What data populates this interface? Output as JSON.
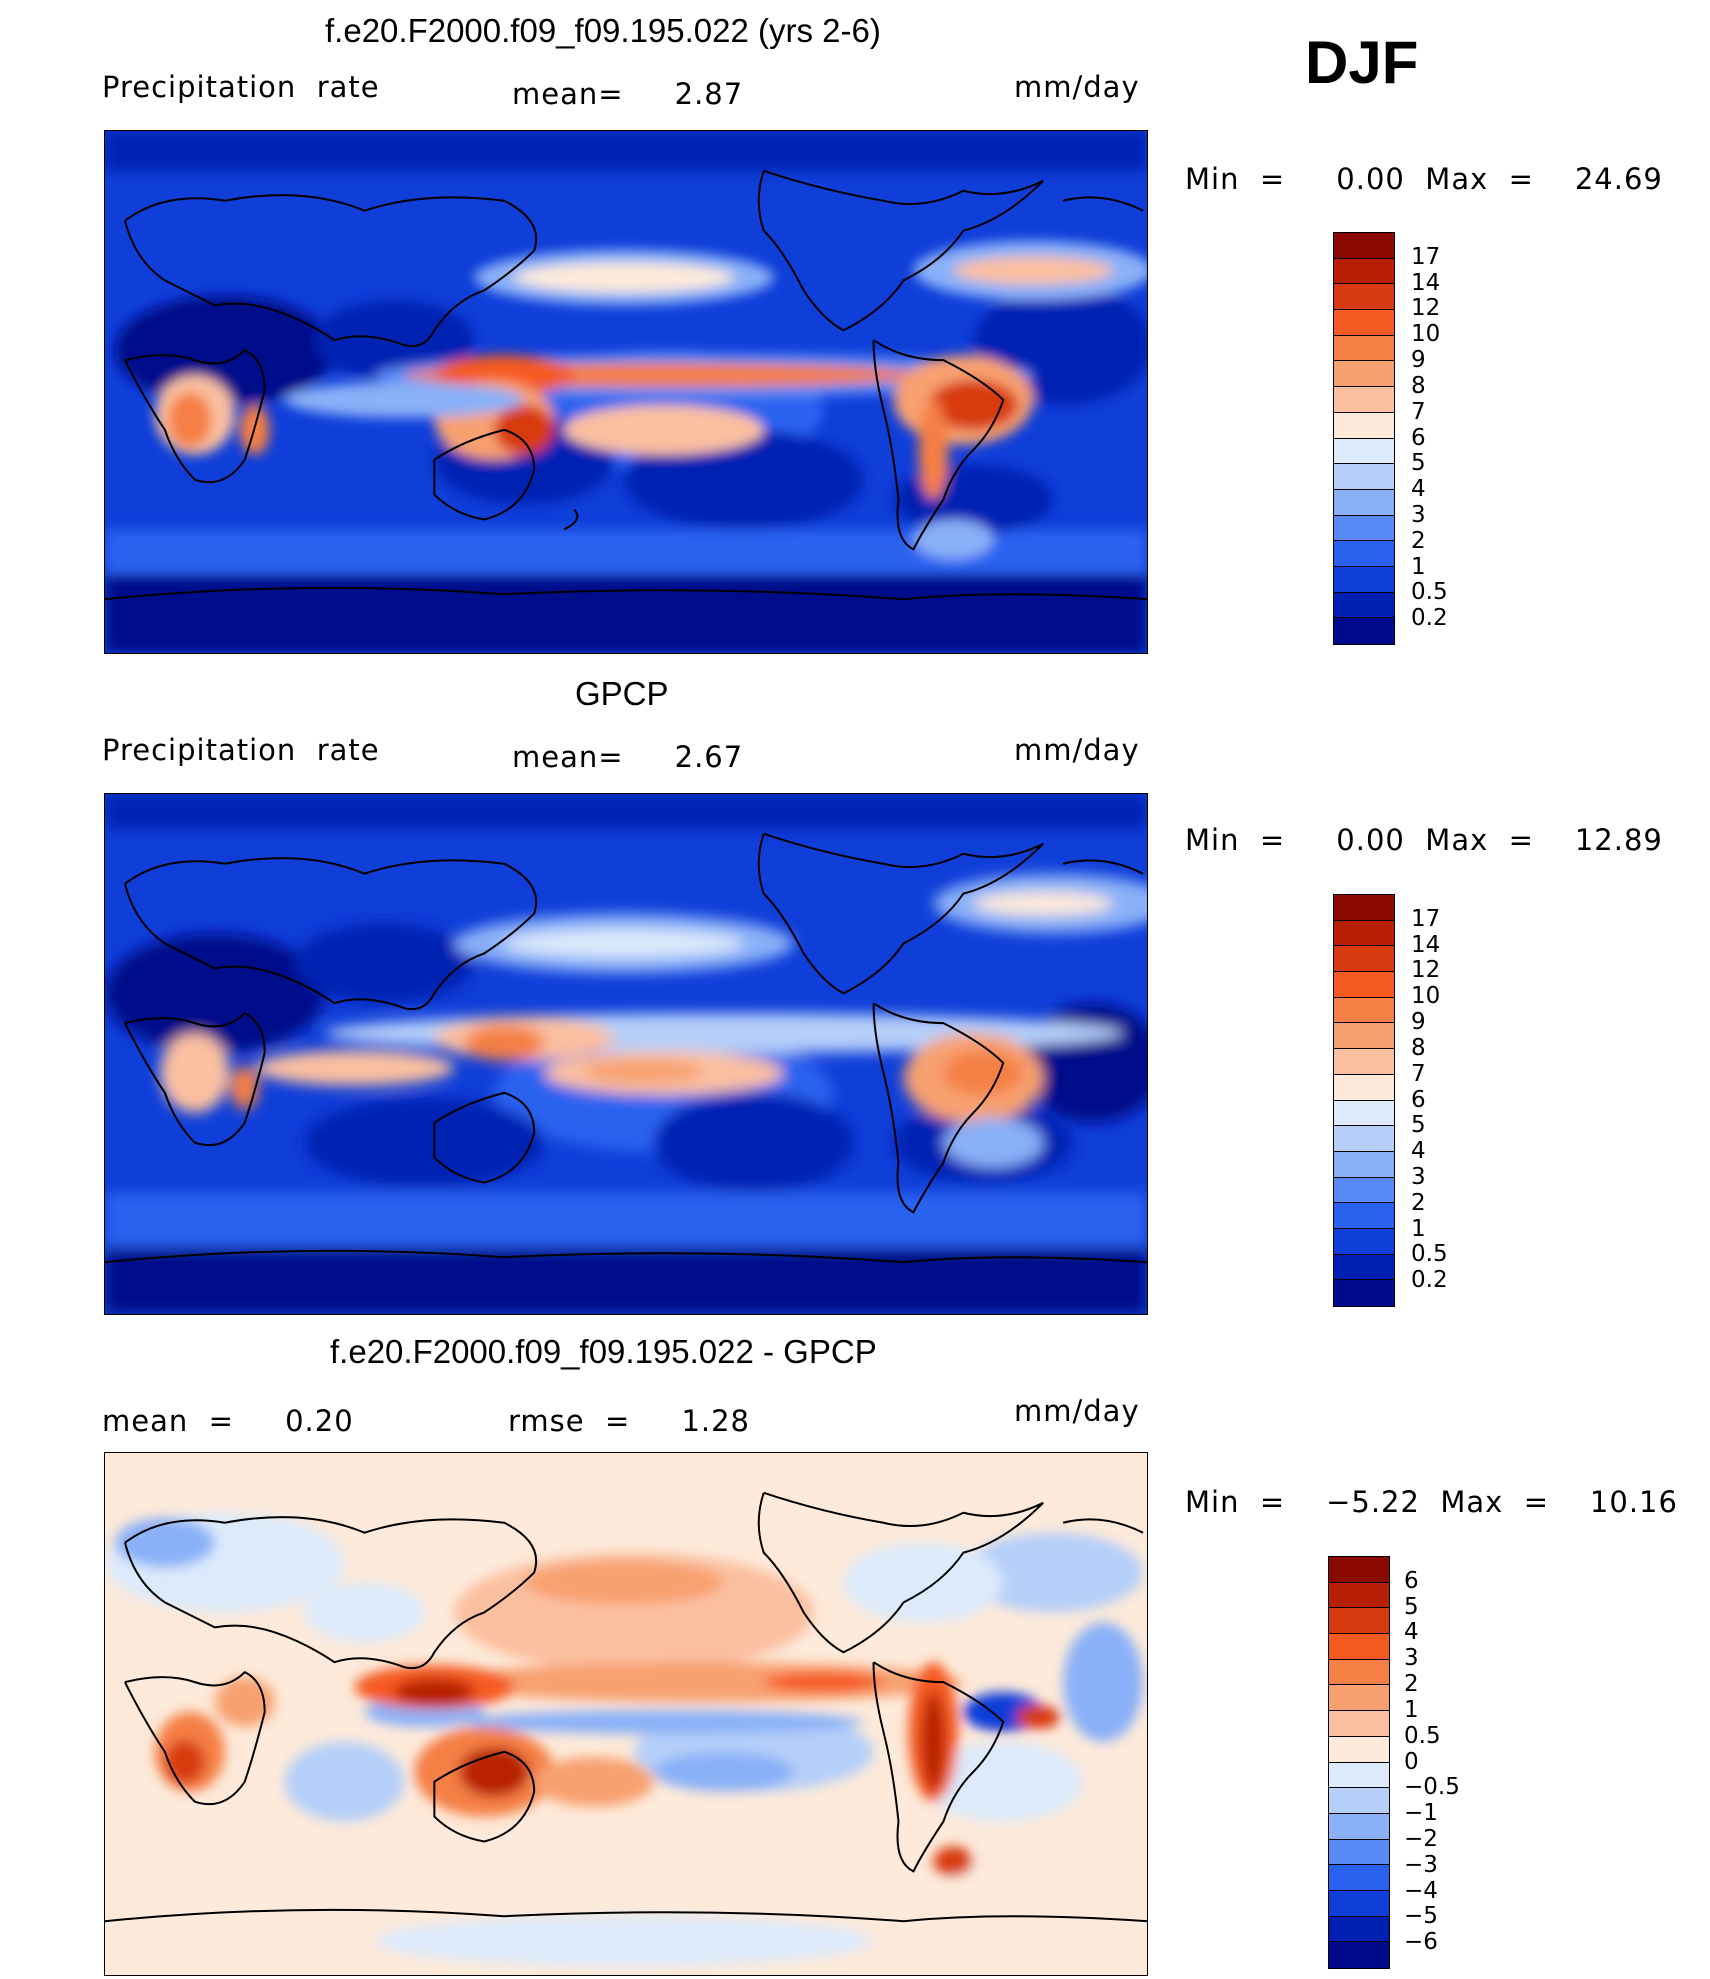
{
  "season": "DJF",
  "colors": {
    "abs_scale": [
      "#000a8a",
      "#0020b3",
      "#0f3ed9",
      "#2a62f0",
      "#5a8af5",
      "#8ab0f8",
      "#b5cff9",
      "#dceafb",
      "#fdeada",
      "#fbc0a0",
      "#f8a070",
      "#f57f45",
      "#f55a20",
      "#d83a10",
      "#b82006",
      "#8a0a02"
    ],
    "diff_scale": [
      "#000a8a",
      "#0020b3",
      "#0f3ed9",
      "#2a62f0",
      "#5a8af5",
      "#8ab0f8",
      "#b5cff9",
      "#dceafb",
      "#fdeada",
      "#fbc0a0",
      "#f8a070",
      "#f57f45",
      "#f55a20",
      "#d83a10",
      "#b82006",
      "#8a0a02"
    ],
    "coast": "#000000"
  },
  "panels": [
    {
      "title": "f.e20.F2000.f09_f09.195.022 (yrs 2-6)",
      "left_label": "Precipitation  rate",
      "mid_label": "mean=     2.87",
      "units": "mm/day",
      "minmax": "Min  =     0.00  Max  =    24.69"
    },
    {
      "title": "GPCP",
      "left_label": "Precipitation  rate",
      "mid_label": "mean=     2.67",
      "units": "mm/day",
      "minmax": "Min  =     0.00  Max  =    12.89"
    },
    {
      "title": "f.e20.F2000.f09_f09.195.022 - GPCP",
      "left_label": "mean  =     0.20",
      "mid_label": "rmse  =     1.28",
      "units": "mm/day",
      "minmax": "Min  =    −5.22  Max  =    10.16"
    }
  ],
  "colorbars": {
    "abs_ticks": [
      "17",
      "14",
      "12",
      "10",
      "9",
      "8",
      "7",
      "6",
      "5",
      "4",
      "3",
      "2",
      "1",
      "0.5",
      "0.2"
    ],
    "diff_ticks": [
      "6",
      "5",
      "4",
      "3",
      "2",
      "1",
      "0.5",
      "0",
      "−0.5",
      "−1",
      "−2",
      "−3",
      "−4",
      "−5",
      "−6"
    ]
  },
  "chart_data": [
    {
      "type": "heatmap",
      "title": "f.e20.F2000.f09_f09.195.022 (yrs 2-6)",
      "variable": "Precipitation  rate",
      "units": "mm/day",
      "mean": 2.87,
      "min": 0.0,
      "max": 24.69,
      "contour_levels": [
        0.2,
        0.5,
        1,
        2,
        3,
        4,
        5,
        6,
        7,
        8,
        9,
        10,
        12,
        14,
        17
      ]
    },
    {
      "type": "heatmap",
      "title": "GPCP",
      "variable": "Precipitation  rate",
      "units": "mm/day",
      "mean": 2.67,
      "min": 0.0,
      "max": 12.89,
      "contour_levels": [
        0.2,
        0.5,
        1,
        2,
        3,
        4,
        5,
        6,
        7,
        8,
        9,
        10,
        12,
        14,
        17
      ]
    },
    {
      "type": "heatmap",
      "title": "f.e20.F2000.f09_f09.195.022 - GPCP",
      "units": "mm/day",
      "mean": 0.2,
      "rmse": 1.28,
      "min": -5.22,
      "max": 10.16,
      "contour_levels": [
        -6,
        -5,
        -4,
        -3,
        -2,
        -1,
        -0.5,
        0,
        0.5,
        1,
        2,
        3,
        4,
        5,
        6
      ]
    }
  ]
}
